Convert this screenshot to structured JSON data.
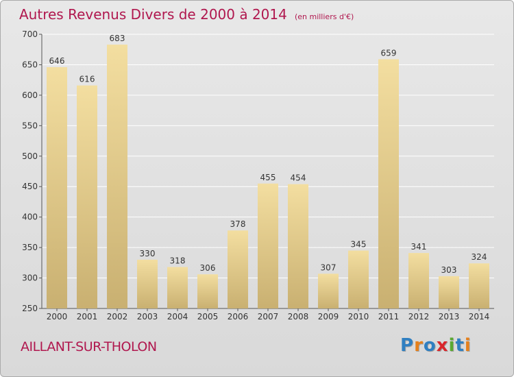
{
  "title": "Autres Revenus Divers de 2000 à 2014",
  "unit": "(en milliers d'€)",
  "city": "AILLANT-SUR-THOLON",
  "brand": "Proxiti",
  "colors": {
    "title": "#b0174e",
    "bar_light": "#f3dea0",
    "bar_dark": "#c9b071",
    "brand_letters": [
      "#2f7fc1",
      "#e5801b",
      "#2f7fc1",
      "#d9262b",
      "#5aa932",
      "#2f7fc1",
      "#e5801b"
    ]
  },
  "chart_data": {
    "type": "bar",
    "title": "Autres Revenus Divers de 2000 à 2014",
    "subtitle": "(en milliers d'€)",
    "categories": [
      "2000",
      "2001",
      "2002",
      "2003",
      "2004",
      "2005",
      "2006",
      "2007",
      "2008",
      "2009",
      "2010",
      "2011",
      "2012",
      "2013",
      "2014"
    ],
    "values": [
      646,
      616,
      683,
      330,
      318,
      306,
      378,
      455,
      454,
      307,
      345,
      659,
      341,
      303,
      324
    ],
    "ylim": [
      250,
      700
    ],
    "yticks": [
      250,
      300,
      350,
      400,
      450,
      500,
      550,
      600,
      650,
      700
    ],
    "grid": true,
    "legend": "none"
  }
}
